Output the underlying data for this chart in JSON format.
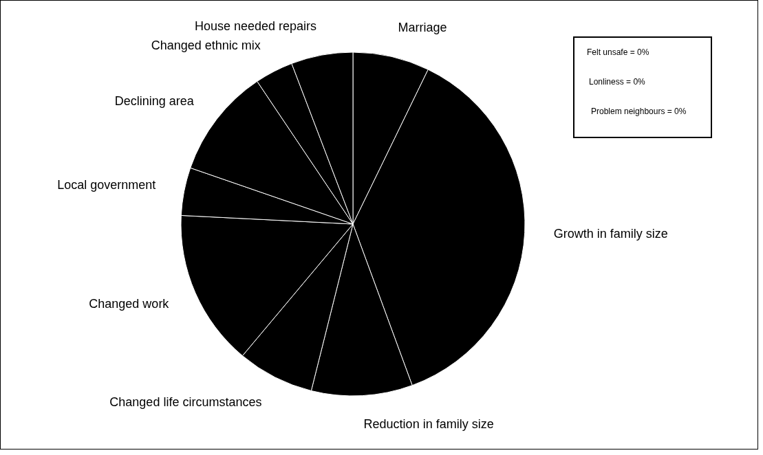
{
  "chart_data": {
    "type": "pie",
    "categories": [
      "Marriage",
      "Growth in family size",
      "Reduction in family size",
      "Changed life circumstances",
      "Changed work",
      "Local government",
      "Declining area",
      "Changed ethnic mix",
      "House needed repairs"
    ],
    "values": [
      7.2,
      37.2,
      9.5,
      7.2,
      14.7,
      4.5,
      10.3,
      3.6,
      5.8
    ],
    "colors": [
      "#000000",
      "#000000",
      "#000000",
      "#000000",
      "#000000",
      "#000000",
      "#000000",
      "#000000",
      "#000000"
    ],
    "annotations": [
      "Felt unsafe = 0%",
      "Lonliness = 0%",
      "Problem neighbours = 0%"
    ]
  }
}
